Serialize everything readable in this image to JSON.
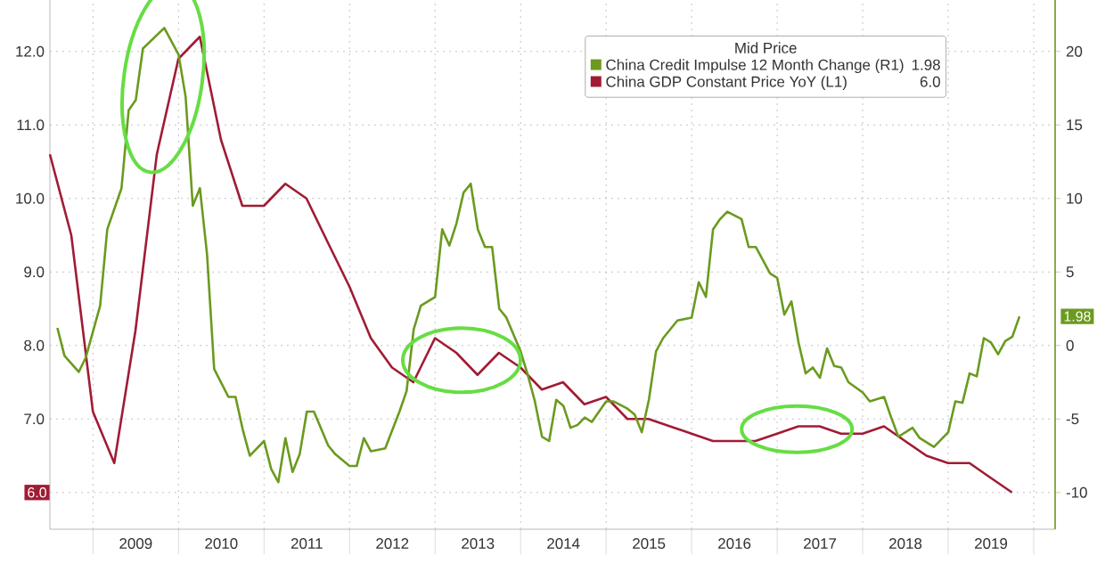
{
  "chart_data": {
    "type": "line",
    "legend_title": "Mid Price",
    "legend": "top right",
    "grid": true,
    "xlim": [
      "2008-06-30",
      "2020-04-01"
    ],
    "xticks": [
      {
        "value": "2009-01-01",
        "label": null
      },
      {
        "value": "2010-01-01",
        "label": null
      },
      {
        "value": "2011-01-01",
        "label": null
      },
      {
        "value": "2012-01-01",
        "label": null
      },
      {
        "value": "2013-01-01",
        "label": null
      },
      {
        "value": "2014-01-01",
        "label": null
      },
      {
        "value": "2015-01-01",
        "label": null
      },
      {
        "value": "2016-01-01",
        "label": null
      },
      {
        "value": "2017-01-01",
        "label": null
      },
      {
        "value": "2018-01-01",
        "label": null
      },
      {
        "value": "2019-01-01",
        "label": null
      },
      {
        "value": "2020-01-01",
        "label": null
      },
      {
        "value": "2009-07-01",
        "label": "2009"
      },
      {
        "value": "2010-07-01",
        "label": "2010"
      },
      {
        "value": "2011-07-01",
        "label": "2011"
      },
      {
        "value": "2012-07-01",
        "label": "2012"
      },
      {
        "value": "2013-07-01",
        "label": "2013"
      },
      {
        "value": "2014-07-01",
        "label": "2014"
      },
      {
        "value": "2015-07-01",
        "label": "2015"
      },
      {
        "value": "2016-07-01",
        "label": "2016"
      },
      {
        "value": "2017-07-01",
        "label": "2017"
      },
      {
        "value": "2018-07-01",
        "label": "2018"
      },
      {
        "value": "2019-07-01",
        "label": "2019"
      }
    ],
    "ylim": [
      5.5,
      12.7
    ],
    "yticks": [
      {
        "value": 6,
        "label": null
      },
      {
        "value": 7,
        "label": "7.0"
      },
      {
        "value": 8,
        "label": "8.0"
      },
      {
        "value": 9,
        "label": "9.0"
      },
      {
        "value": 10,
        "label": "10.0"
      },
      {
        "value": 11,
        "label": "11.0"
      },
      {
        "value": 12,
        "label": "12.0"
      }
    ],
    "y2lim": [
      -12.5,
      23.5
    ],
    "y2ticks": [
      -10,
      -5,
      0,
      5,
      10,
      15,
      20
    ],
    "series": [
      {
        "name": "China Credit Impulse 12 Month Change  (R1)",
        "color": "#6b9a1f",
        "axis": "y2",
        "x": [
          "2008-08",
          "2008-09",
          "2008-11",
          "2008-12",
          "2009-02",
          "2009-03",
          "2009-05",
          "2009-06",
          "2009-07",
          "2009-08",
          "2009-11",
          "2010-01",
          "2010-02",
          "2010-03",
          "2010-04",
          "2010-05",
          "2010-06",
          "2010-08",
          "2010-09",
          "2010-10",
          "2010-11",
          "2011-01",
          "2011-02",
          "2011-03",
          "2011-04",
          "2011-05",
          "2011-06",
          "2011-07",
          "2011-08",
          "2011-10",
          "2011-11",
          "2012-01",
          "2012-02",
          "2012-03",
          "2012-04",
          "2012-06",
          "2012-08",
          "2012-09",
          "2012-10",
          "2012-11",
          "2013-01",
          "2013-02",
          "2013-03",
          "2013-04",
          "2013-05",
          "2013-06",
          "2013-07",
          "2013-08",
          "2013-09",
          "2013-10",
          "2013-11",
          "2014-01",
          "2014-02",
          "2014-03",
          "2014-04",
          "2014-05",
          "2014-06",
          "2014-07",
          "2014-08",
          "2014-09",
          "2014-10",
          "2014-11",
          "2015-01",
          "2015-02",
          "2015-04",
          "2015-05",
          "2015-06",
          "2015-07",
          "2015-08",
          "2015-09",
          "2015-11",
          "2016-01",
          "2016-02",
          "2016-03",
          "2016-04",
          "2016-05",
          "2016-06",
          "2016-08",
          "2016-09",
          "2016-10",
          "2016-11",
          "2016-12",
          "2017-01",
          "2017-02",
          "2017-03",
          "2017-04",
          "2017-05",
          "2017-06",
          "2017-07",
          "2017-08",
          "2017-09",
          "2017-10",
          "2017-11",
          "2018-01",
          "2018-02",
          "2018-04",
          "2018-05",
          "2018-06",
          "2018-08",
          "2018-09",
          "2018-11",
          "2019-01",
          "2019-02",
          "2019-03",
          "2019-04",
          "2019-05",
          "2019-06",
          "2019-07",
          "2019-08",
          "2019-09",
          "2019-10",
          "2019-11"
        ],
        "values": [
          1.2,
          -0.7,
          -1.8,
          -0.8,
          2.7,
          7.9,
          10.7,
          16.0,
          16.7,
          20.2,
          21.6,
          19.8,
          16.9,
          9.5,
          10.7,
          6.2,
          -1.6,
          -3.5,
          -3.5,
          -5.7,
          -7.5,
          -6.5,
          -8.4,
          -9.3,
          -6.3,
          -8.6,
          -7.4,
          -4.5,
          -4.5,
          -6.8,
          -7.4,
          -8.2,
          -8.2,
          -6.3,
          -7.2,
          -7.0,
          -4.5,
          -3.1,
          1.1,
          2.7,
          3.3,
          7.9,
          6.8,
          8.3,
          10.4,
          11.0,
          7.9,
          6.7,
          6.7,
          2.5,
          1.9,
          -0.4,
          -2.0,
          -3.8,
          -6.2,
          -6.5,
          -3.7,
          -4.1,
          -5.6,
          -5.4,
          -4.9,
          -5.2,
          -3.8,
          -3.8,
          -4.3,
          -4.7,
          -5.9,
          -3.7,
          -0.4,
          0.5,
          1.7,
          1.9,
          4.3,
          3.3,
          7.9,
          8.6,
          9.1,
          8.6,
          6.7,
          6.7,
          5.8,
          4.9,
          4.6,
          2.1,
          3.0,
          0.2,
          -1.9,
          -1.5,
          -2.2,
          -0.2,
          -1.4,
          -1.5,
          -2.5,
          -3.2,
          -3.8,
          -3.5,
          -4.9,
          -6.2,
          -5.6,
          -6.3,
          -6.9,
          -5.9,
          -3.8,
          -3.9,
          -1.9,
          -2.1,
          0.5,
          0.2,
          -0.6,
          0.3,
          0.6,
          1.98
        ]
      },
      {
        "name": "China GDP Constant Price YoY  (L1)",
        "color": "#a01c34",
        "x": [
          "2008-06-30",
          "2008-09-30",
          "2008-12-31",
          "2009-03-31",
          "2009-06-30",
          "2009-09-30",
          "2009-12-31",
          "2010-03-31",
          "2010-06-30",
          "2010-09-30",
          "2010-12-31",
          "2011-03-31",
          "2011-06-30",
          "2011-09-30",
          "2011-12-31",
          "2012-03-31",
          "2012-06-30",
          "2012-09-30",
          "2012-12-31",
          "2013-03-31",
          "2013-06-30",
          "2013-09-30",
          "2013-12-31",
          "2014-03-31",
          "2014-06-30",
          "2014-09-30",
          "2014-12-31",
          "2015-03-31",
          "2015-06-30",
          "2015-09-30",
          "2015-12-31",
          "2016-03-31",
          "2016-06-30",
          "2016-09-30",
          "2016-12-31",
          "2017-03-31",
          "2017-06-30",
          "2017-09-30",
          "2017-12-31",
          "2018-03-31",
          "2018-06-30",
          "2018-09-30",
          "2018-12-31",
          "2019-03-31",
          "2019-06-30",
          "2019-09-30"
        ],
        "values": [
          10.6,
          9.5,
          7.1,
          6.4,
          8.2,
          10.6,
          11.9,
          12.2,
          10.8,
          9.9,
          9.9,
          10.2,
          10.0,
          9.4,
          8.8,
          8.1,
          7.7,
          7.5,
          8.1,
          7.9,
          7.6,
          7.9,
          7.7,
          7.4,
          7.5,
          7.2,
          7.3,
          7.0,
          7.0,
          6.9,
          6.8,
          6.7,
          6.7,
          6.7,
          6.8,
          6.9,
          6.9,
          6.8,
          6.8,
          6.9,
          6.7,
          6.5,
          6.4,
          6.4,
          6.2,
          6.0
        ]
      }
    ],
    "annotations": [
      "1.98",
      "6.0",
      "1.98",
      "6.0"
    ]
  }
}
